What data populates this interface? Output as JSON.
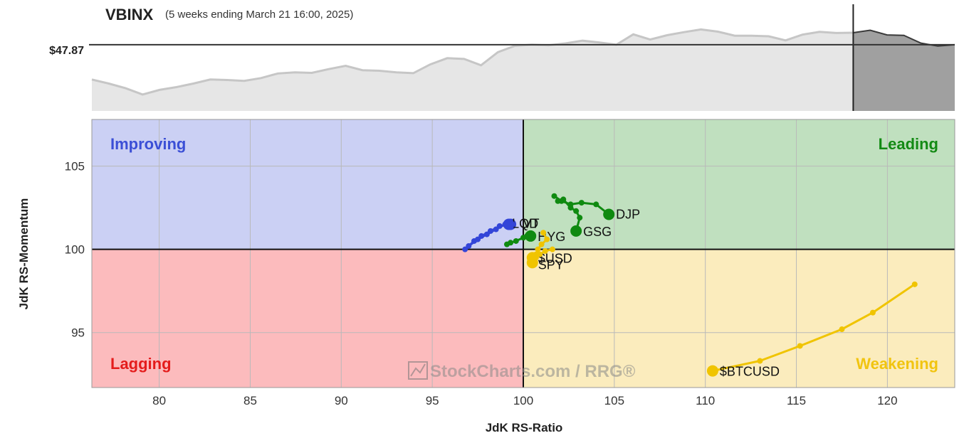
{
  "header": {
    "symbol": "VBINX",
    "period": "(5 weeks ending March 21 16:00, 2025)",
    "price_label": "$47.87"
  },
  "quadrants": {
    "improving": "Improving",
    "leading": "Leading",
    "lagging": "Lagging",
    "weakening": "Weakening"
  },
  "watermark": "StockCharts.com / RRG®",
  "colors": {
    "improving_bg": "#cbd0f4",
    "leading_bg": "#c0e0bf",
    "lagging_bg": "#fcbbbd",
    "weakening_bg": "#fbecbd",
    "improving_text": "#3b4fd6",
    "leading_text": "#138a14",
    "lagging_text": "#e41c1c",
    "weakening_text": "#f1c40f",
    "blue_tail": "#3345d8",
    "green_tail": "#0f8a10",
    "yellow_tail": "#f0c400"
  },
  "chart_data": {
    "type": "scatter",
    "title": "VBINX",
    "xlabel": "JdK RS-Ratio",
    "ylabel": "JdK RS-Momentum",
    "xlim": [
      76.3,
      123.7
    ],
    "ylim": [
      91.7,
      107.8
    ],
    "x_ticks": [
      80,
      85,
      90,
      95,
      100,
      105,
      110,
      115,
      120
    ],
    "y_ticks": [
      95,
      100,
      105
    ],
    "grid": true,
    "center": [
      100,
      100
    ],
    "series": [
      {
        "name": "LQD",
        "color": "#3345d8",
        "x": [
          96.8,
          97.3,
          97.7,
          98.2,
          98.7,
          99.3
        ],
        "y": [
          100.0,
          100.5,
          100.8,
          101.1,
          101.4,
          101.5
        ]
      },
      {
        "name": "VT",
        "color": "#3345d8",
        "x": [
          97.0,
          97.5,
          98.0,
          98.5,
          99.0,
          99.2
        ],
        "y": [
          100.2,
          100.6,
          100.9,
          101.2,
          101.5,
          101.5
        ]
      },
      {
        "name": "HYG",
        "color": "#0f8a10",
        "x": [
          99.1,
          99.3,
          99.6,
          100.0,
          100.2,
          100.4
        ],
        "y": [
          100.3,
          100.4,
          100.5,
          100.7,
          100.8,
          100.8
        ]
      },
      {
        "name": "DJP",
        "color": "#0f8a10",
        "x": [
          101.7,
          102.1,
          102.6,
          103.2,
          104.0,
          104.7
        ],
        "y": [
          103.2,
          102.9,
          102.7,
          102.8,
          102.7,
          102.1
        ]
      },
      {
        "name": "GSG",
        "color": "#0f8a10",
        "x": [
          101.9,
          102.2,
          102.6,
          102.9,
          103.1,
          102.9
        ],
        "y": [
          102.9,
          103.0,
          102.5,
          102.3,
          101.9,
          101.1
        ]
      },
      {
        "name": "$USD",
        "color": "#f0c400",
        "x": [
          101.1,
          101.3,
          101.0,
          100.8,
          100.7,
          100.5
        ],
        "y": [
          101.0,
          100.6,
          100.3,
          100.0,
          99.7,
          99.5
        ]
      },
      {
        "name": "SPY",
        "color": "#f0c400",
        "x": [
          101.6,
          101.2,
          100.9,
          100.7,
          100.6,
          100.5
        ],
        "y": [
          100.0,
          99.9,
          99.7,
          99.5,
          99.3,
          99.2
        ]
      },
      {
        "name": "$BTCUSD",
        "color": "#f0c400",
        "x": [
          121.5,
          119.2,
          117.5,
          115.2,
          113.0,
          110.4
        ],
        "y": [
          97.9,
          96.2,
          95.2,
          94.2,
          93.3,
          92.7
        ]
      }
    ]
  },
  "price_chart": {
    "type": "area",
    "values": [
      46.6,
      46.45,
      46.28,
      46.05,
      46.22,
      46.32,
      46.45,
      46.6,
      46.58,
      46.55,
      46.65,
      46.82,
      46.86,
      46.84,
      46.98,
      47.1,
      46.94,
      46.92,
      46.86,
      46.83,
      47.15,
      47.38,
      47.35,
      47.12,
      47.6,
      47.83,
      47.87,
      47.85,
      47.92,
      48.02,
      47.95,
      47.87,
      48.25,
      48.06,
      48.22,
      48.33,
      48.43,
      48.35,
      48.2,
      48.2,
      48.18,
      48.03,
      48.24,
      48.34,
      48.3,
      48.31,
      48.4,
      48.23,
      48.21,
      47.93,
      47.82,
      47.87
    ],
    "current_price": 47.87,
    "highlight_start_index": 45
  }
}
